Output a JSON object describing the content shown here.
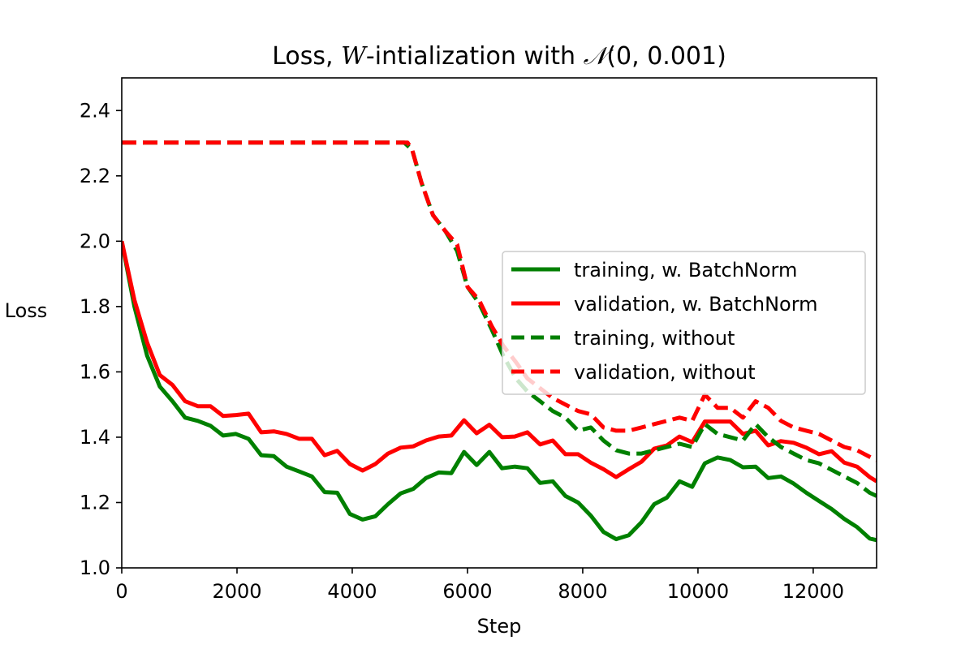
{
  "chart_data": {
    "type": "line",
    "title": {
      "prefix": "Loss,  ",
      "var": "W",
      "middle": "-intialization with ",
      "dist": "𝒩",
      "suffix": "(0, 0.001)"
    },
    "xlabel": "Step",
    "ylabel": "Loss",
    "xlim": [
      0,
      13100
    ],
    "ylim": [
      1.0,
      2.5
    ],
    "xticks": [
      0,
      2000,
      4000,
      6000,
      8000,
      10000,
      12000
    ],
    "yticks": [
      1.0,
      1.2,
      1.4,
      1.6,
      1.8,
      2.0,
      2.2,
      2.4
    ],
    "xtick_labels": [
      "0",
      "2000",
      "4000",
      "6000",
      "8000",
      "10000",
      "12000"
    ],
    "ytick_labels": [
      "1.0",
      "1.2",
      "1.4",
      "1.6",
      "1.8",
      "2.0",
      "2.2",
      "2.4"
    ],
    "grid": false,
    "legend_position": "center-right",
    "series": [
      {
        "name": "training, w. BatchNorm",
        "color": "#008000",
        "dash": "solid",
        "x": [
          0,
          220,
          440,
          660,
          880,
          1100,
          1320,
          1540,
          1760,
          1980,
          2200,
          2420,
          2640,
          2860,
          3080,
          3300,
          3520,
          3740,
          3960,
          4180,
          4400,
          4620,
          4840,
          5060,
          5280,
          5500,
          5720,
          5940,
          6160,
          6380,
          6600,
          6820,
          7040,
          7260,
          7480,
          7700,
          7920,
          8140,
          8360,
          8580,
          8800,
          9020,
          9240,
          9460,
          9680,
          9900,
          10120,
          10340,
          10560,
          10780,
          11000,
          11220,
          11440,
          11660,
          11880,
          12100,
          12320,
          12540,
          12760,
          12980,
          13100
        ],
        "y": [
          2.0,
          1.8,
          1.65,
          1.555,
          1.51,
          1.46,
          1.45,
          1.435,
          1.405,
          1.41,
          1.395,
          1.345,
          1.342,
          1.31,
          1.295,
          1.28,
          1.232,
          1.23,
          1.165,
          1.148,
          1.158,
          1.195,
          1.228,
          1.242,
          1.275,
          1.292,
          1.29,
          1.355,
          1.315,
          1.355,
          1.305,
          1.31,
          1.305,
          1.26,
          1.265,
          1.22,
          1.2,
          1.16,
          1.11,
          1.088,
          1.1,
          1.14,
          1.195,
          1.215,
          1.265,
          1.248,
          1.32,
          1.338,
          1.33,
          1.308,
          1.31,
          1.275,
          1.28,
          1.258,
          1.23,
          1.205,
          1.18,
          1.15,
          1.125,
          1.09,
          1.085
        ]
      },
      {
        "name": "validation, w. BatchNorm",
        "color": "#ff0000",
        "dash": "solid",
        "x": [
          0,
          220,
          440,
          660,
          880,
          1100,
          1320,
          1540,
          1760,
          1980,
          2200,
          2420,
          2640,
          2860,
          3080,
          3300,
          3520,
          3740,
          3960,
          4180,
          4400,
          4620,
          4840,
          5060,
          5280,
          5500,
          5720,
          5940,
          6160,
          6380,
          6600,
          6820,
          7040,
          7260,
          7480,
          7700,
          7920,
          8140,
          8360,
          8580,
          8800,
          9020,
          9240,
          9460,
          9680,
          9900,
          10120,
          10340,
          10560,
          10780,
          11000,
          11220,
          11440,
          11660,
          11880,
          12100,
          12320,
          12540,
          12760,
          12980,
          13100
        ],
        "y": [
          2.0,
          1.82,
          1.69,
          1.59,
          1.56,
          1.51,
          1.495,
          1.495,
          1.465,
          1.468,
          1.472,
          1.415,
          1.418,
          1.41,
          1.395,
          1.395,
          1.345,
          1.358,
          1.318,
          1.298,
          1.318,
          1.35,
          1.368,
          1.372,
          1.39,
          1.402,
          1.405,
          1.452,
          1.412,
          1.438,
          1.4,
          1.402,
          1.415,
          1.378,
          1.39,
          1.348,
          1.348,
          1.322,
          1.302,
          1.278,
          1.302,
          1.325,
          1.365,
          1.375,
          1.402,
          1.385,
          1.448,
          1.448,
          1.448,
          1.41,
          1.42,
          1.375,
          1.388,
          1.383,
          1.368,
          1.348,
          1.357,
          1.322,
          1.31,
          1.278,
          1.265
        ]
      },
      {
        "name": "training, without",
        "color": "#008000",
        "dash": "dashed",
        "x": [
          0,
          4900,
          5040,
          5200,
          5400,
          5620,
          5820,
          6000,
          6200,
          6420,
          6620,
          6840,
          7040,
          7260,
          7480,
          7700,
          7920,
          8140,
          8360,
          8580,
          8800,
          9020,
          9240,
          9460,
          9680,
          9900,
          10120,
          10340,
          10560,
          10780,
          11000,
          11220,
          11440,
          11660,
          11880,
          12100,
          12320,
          12540,
          12760,
          12980,
          13100
        ],
        "y": [
          2.302,
          2.302,
          2.28,
          2.18,
          2.08,
          2.03,
          1.97,
          1.86,
          1.81,
          1.73,
          1.65,
          1.58,
          1.54,
          1.51,
          1.48,
          1.46,
          1.42,
          1.43,
          1.39,
          1.36,
          1.35,
          1.35,
          1.36,
          1.37,
          1.38,
          1.37,
          1.44,
          1.41,
          1.4,
          1.39,
          1.44,
          1.4,
          1.37,
          1.35,
          1.33,
          1.32,
          1.3,
          1.28,
          1.26,
          1.23,
          1.22
        ]
      },
      {
        "name": "validation, without",
        "color": "#ff0000",
        "dash": "dashed",
        "x": [
          0,
          4960,
          5040,
          5200,
          5400,
          5620,
          5820,
          6000,
          6200,
          6420,
          6620,
          6840,
          7040,
          7260,
          7480,
          7700,
          7920,
          8140,
          8360,
          8580,
          8800,
          9020,
          9240,
          9460,
          9680,
          9900,
          10120,
          10340,
          10560,
          10780,
          11000,
          11220,
          11440,
          11660,
          11880,
          12100,
          12320,
          12540,
          12760,
          12980,
          13100
        ],
        "y": [
          2.302,
          2.302,
          2.28,
          2.18,
          2.08,
          2.03,
          1.99,
          1.86,
          1.82,
          1.74,
          1.68,
          1.63,
          1.58,
          1.55,
          1.52,
          1.5,
          1.48,
          1.47,
          1.43,
          1.42,
          1.42,
          1.43,
          1.44,
          1.45,
          1.46,
          1.45,
          1.53,
          1.49,
          1.49,
          1.46,
          1.51,
          1.49,
          1.45,
          1.43,
          1.42,
          1.41,
          1.39,
          1.37,
          1.36,
          1.34,
          1.33
        ]
      }
    ]
  }
}
